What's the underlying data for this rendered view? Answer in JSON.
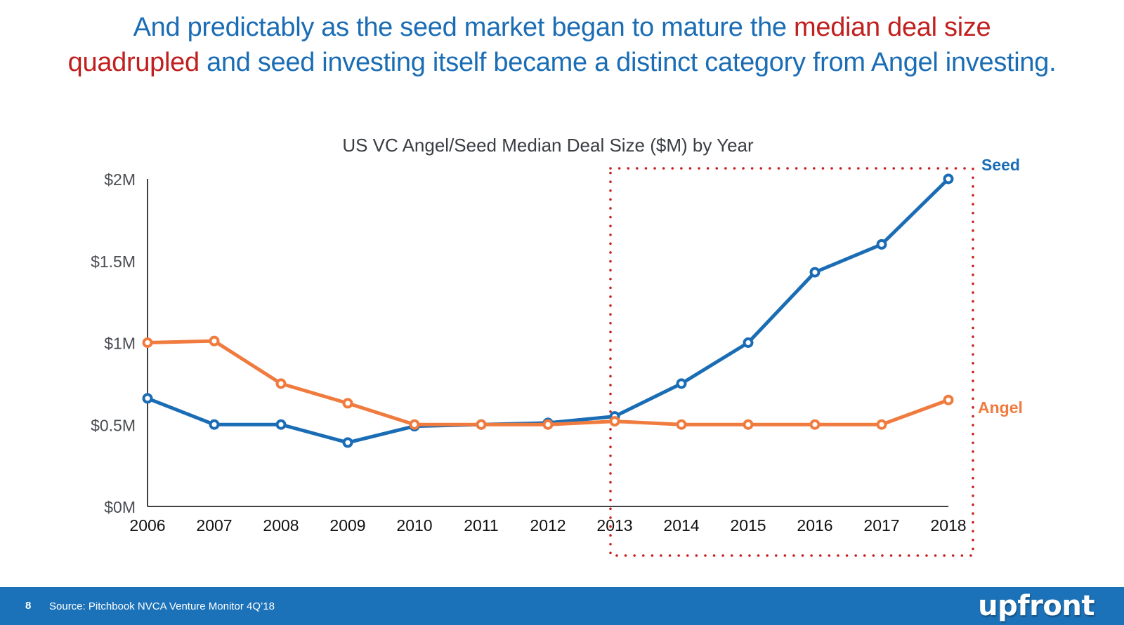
{
  "headline": {
    "line1_prefix": "And predictably as the seed market began to mature the ",
    "line1_highlight": "median deal size",
    "line2_highlight": "quadrupled",
    "line2_suffix": " and seed investing itself became a distinct category from Angel investing."
  },
  "colors": {
    "headline_text": "#1a6db5",
    "headline_highlight": "#c0201f",
    "seed": "#1a6db5",
    "angel": "#f07b3f",
    "highlight_box": "#c81e1e",
    "footer_bg": "#1c72b8"
  },
  "chart_data": {
    "type": "line",
    "title": "US VC Angel/Seed Median Deal Size ($M) by Year",
    "xlabel": "",
    "ylabel": "",
    "x": [
      "2006",
      "2007",
      "2008",
      "2009",
      "2010",
      "2011",
      "2012",
      "2013",
      "2014",
      "2015",
      "2016",
      "2017",
      "2018"
    ],
    "ylim": [
      0,
      2
    ],
    "yticks": [
      0,
      0.5,
      1,
      1.5,
      2
    ],
    "ytick_labels": [
      "$0M",
      "$0.5M",
      "$1M",
      "$1.5M",
      "$2M"
    ],
    "grid": false,
    "legend": "inline-right",
    "series": [
      {
        "name": "Seed",
        "color": "#1a6db5",
        "values": [
          0.66,
          0.5,
          0.5,
          0.39,
          0.49,
          0.5,
          0.51,
          0.55,
          0.75,
          1.0,
          1.43,
          1.6,
          2.0
        ]
      },
      {
        "name": "Angel",
        "color": "#f07b3f",
        "values": [
          1.0,
          1.01,
          0.75,
          0.63,
          0.5,
          0.5,
          0.5,
          0.52,
          0.5,
          0.5,
          0.5,
          0.5,
          0.65
        ]
      }
    ],
    "annotations": [
      {
        "type": "dotted-box",
        "from_x": "2013",
        "to_x": "2018",
        "label": "Highlighted period 2013–2018"
      }
    ]
  },
  "footer": {
    "page_number": "8",
    "source": "Source: Pitchbook NVCA Venture Monitor 4Q’18",
    "logo": "upfront"
  }
}
